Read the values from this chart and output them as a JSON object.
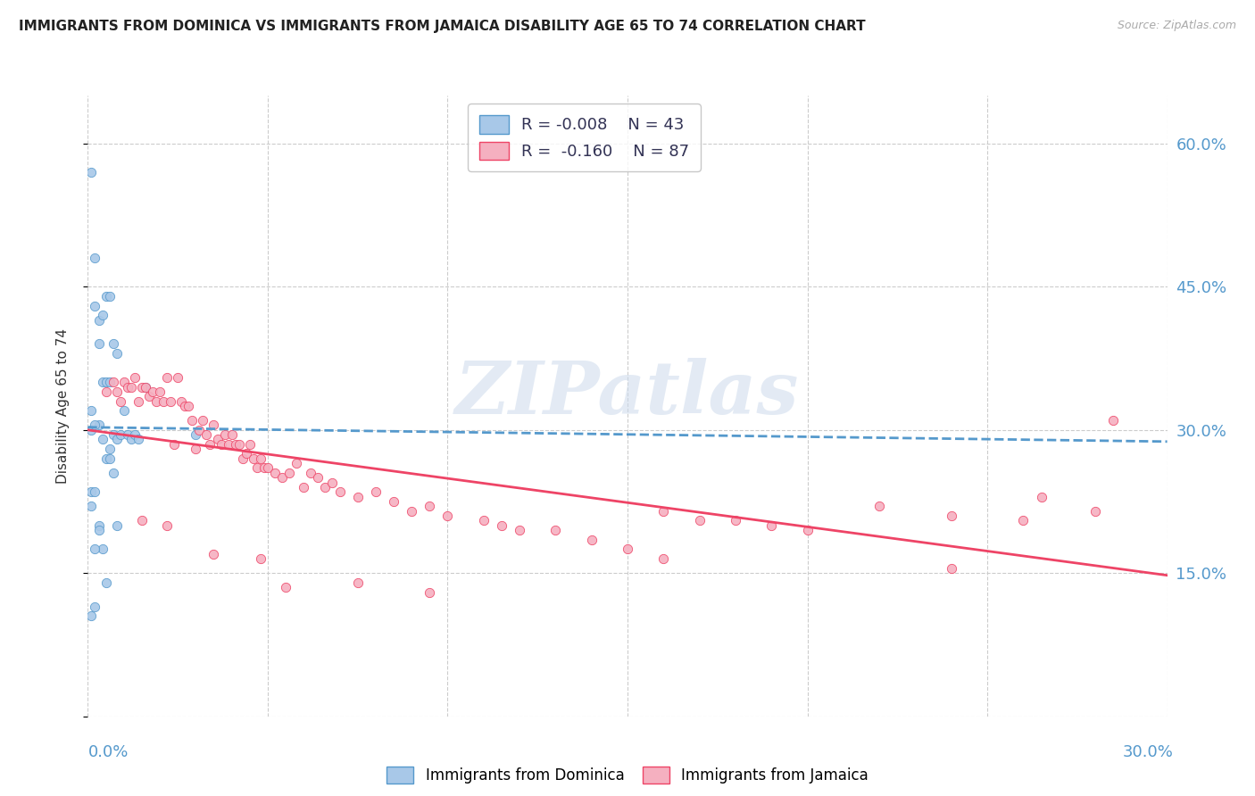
{
  "title": "IMMIGRANTS FROM DOMINICA VS IMMIGRANTS FROM JAMAICA DISABILITY AGE 65 TO 74 CORRELATION CHART",
  "source": "Source: ZipAtlas.com",
  "ylabel": "Disability Age 65 to 74",
  "yticks": [
    0.0,
    0.15,
    0.3,
    0.45,
    0.6
  ],
  "ytick_labels": [
    "",
    "15.0%",
    "30.0%",
    "45.0%",
    "60.0%"
  ],
  "xmin": 0.0,
  "xmax": 0.3,
  "ymin": 0.0,
  "ymax": 0.65,
  "color_dominica": "#a8c8e8",
  "color_jamaica": "#f5b0c0",
  "line_dominica_color": "#5599cc",
  "line_jamaica_color": "#ee4466",
  "watermark_text": "ZIPatlas",
  "dominica_x": [
    0.001,
    0.002,
    0.002,
    0.003,
    0.003,
    0.003,
    0.004,
    0.004,
    0.005,
    0.005,
    0.006,
    0.006,
    0.006,
    0.007,
    0.007,
    0.008,
    0.008,
    0.009,
    0.01,
    0.011,
    0.012,
    0.013,
    0.014,
    0.016,
    0.001,
    0.001,
    0.001,
    0.002,
    0.002,
    0.003,
    0.004,
    0.005,
    0.006,
    0.003,
    0.004,
    0.005,
    0.007,
    0.008,
    0.002,
    0.001,
    0.001,
    0.002,
    0.03
  ],
  "dominica_y": [
    0.57,
    0.48,
    0.43,
    0.415,
    0.39,
    0.305,
    0.42,
    0.35,
    0.44,
    0.35,
    0.44,
    0.35,
    0.28,
    0.39,
    0.295,
    0.38,
    0.29,
    0.295,
    0.32,
    0.295,
    0.29,
    0.295,
    0.29,
    0.345,
    0.32,
    0.3,
    0.235,
    0.305,
    0.235,
    0.2,
    0.29,
    0.27,
    0.27,
    0.195,
    0.175,
    0.14,
    0.255,
    0.2,
    0.175,
    0.22,
    0.105,
    0.115,
    0.295
  ],
  "jamaica_x": [
    0.005,
    0.007,
    0.008,
    0.009,
    0.01,
    0.011,
    0.012,
    0.013,
    0.014,
    0.015,
    0.016,
    0.017,
    0.018,
    0.019,
    0.02,
    0.021,
    0.022,
    0.023,
    0.024,
    0.025,
    0.026,
    0.027,
    0.028,
    0.029,
    0.03,
    0.031,
    0.032,
    0.033,
    0.034,
    0.035,
    0.036,
    0.037,
    0.038,
    0.039,
    0.04,
    0.041,
    0.042,
    0.043,
    0.044,
    0.045,
    0.046,
    0.047,
    0.048,
    0.049,
    0.05,
    0.052,
    0.054,
    0.056,
    0.058,
    0.06,
    0.062,
    0.064,
    0.066,
    0.068,
    0.07,
    0.075,
    0.08,
    0.085,
    0.09,
    0.095,
    0.1,
    0.11,
    0.115,
    0.12,
    0.13,
    0.14,
    0.15,
    0.16,
    0.17,
    0.18,
    0.19,
    0.2,
    0.22,
    0.24,
    0.26,
    0.28,
    0.015,
    0.022,
    0.035,
    0.048,
    0.055,
    0.075,
    0.095,
    0.16,
    0.24,
    0.265,
    0.285
  ],
  "jamaica_y": [
    0.34,
    0.35,
    0.34,
    0.33,
    0.35,
    0.345,
    0.345,
    0.355,
    0.33,
    0.345,
    0.345,
    0.335,
    0.34,
    0.33,
    0.34,
    0.33,
    0.355,
    0.33,
    0.285,
    0.355,
    0.33,
    0.325,
    0.325,
    0.31,
    0.28,
    0.3,
    0.31,
    0.295,
    0.285,
    0.305,
    0.29,
    0.285,
    0.295,
    0.285,
    0.295,
    0.285,
    0.285,
    0.27,
    0.275,
    0.285,
    0.27,
    0.26,
    0.27,
    0.26,
    0.26,
    0.255,
    0.25,
    0.255,
    0.265,
    0.24,
    0.255,
    0.25,
    0.24,
    0.245,
    0.235,
    0.23,
    0.235,
    0.225,
    0.215,
    0.22,
    0.21,
    0.205,
    0.2,
    0.195,
    0.195,
    0.185,
    0.175,
    0.215,
    0.205,
    0.205,
    0.2,
    0.195,
    0.22,
    0.21,
    0.205,
    0.215,
    0.205,
    0.2,
    0.17,
    0.165,
    0.135,
    0.14,
    0.13,
    0.165,
    0.155,
    0.23,
    0.31
  ]
}
